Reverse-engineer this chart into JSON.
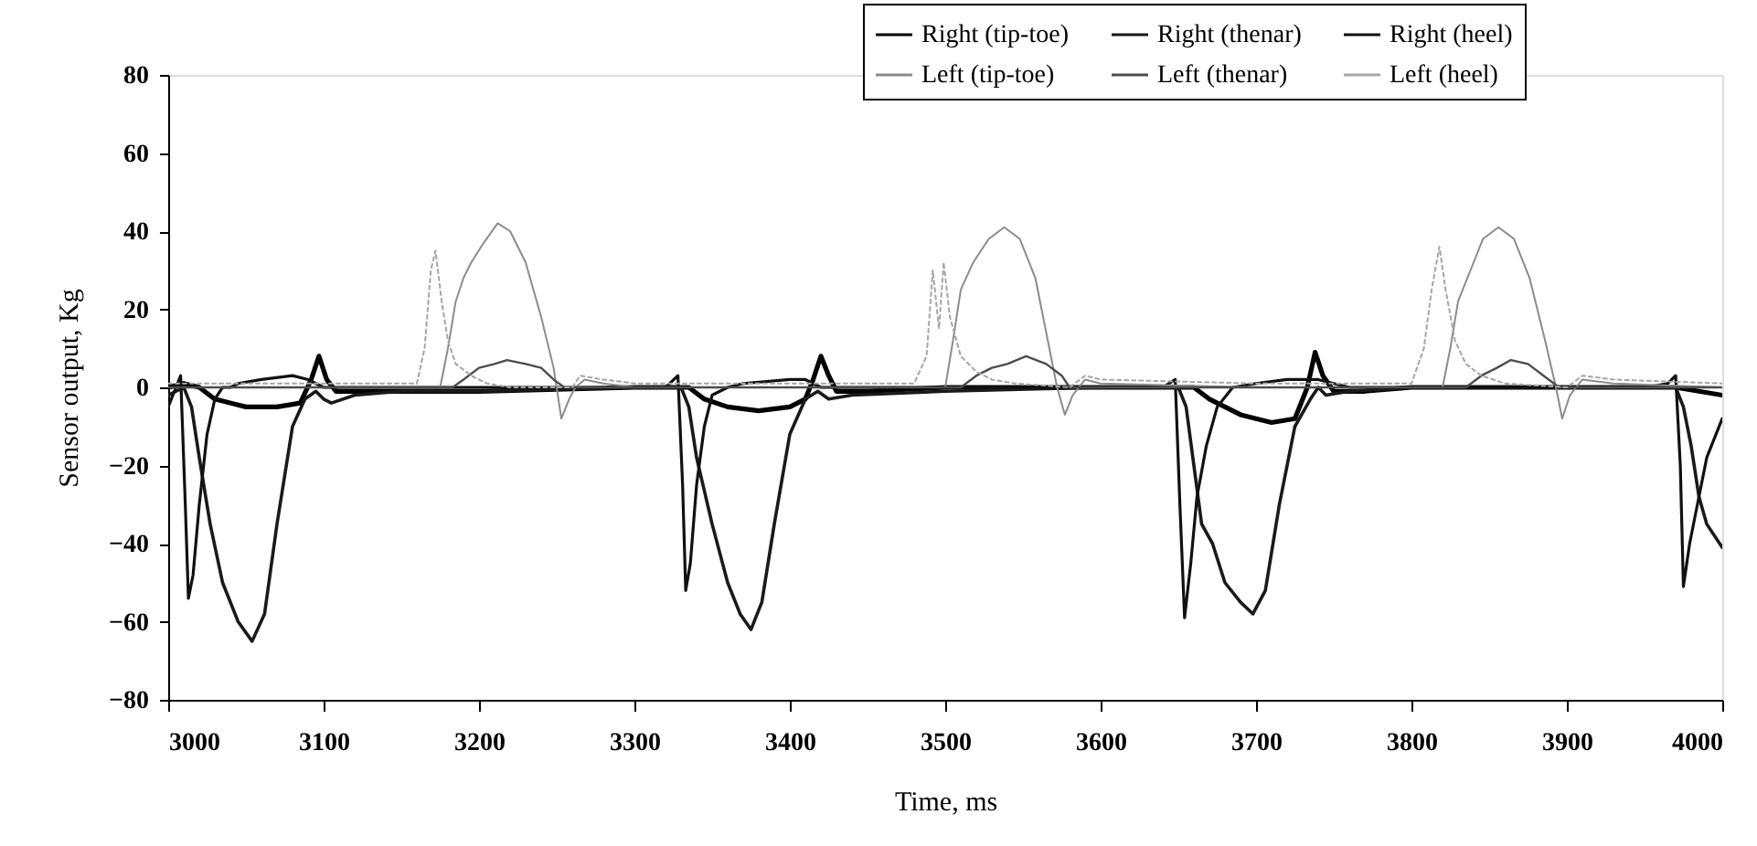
{
  "chart_data": {
    "type": "line",
    "xlabel": "Time, ms",
    "ylabel": "Sensor output, Kg",
    "xlim": [
      3000,
      4000
    ],
    "xticks": [
      3000,
      3100,
      3200,
      3300,
      3400,
      3500,
      3600,
      3700,
      3800,
      3900,
      4000
    ],
    "ylim": [
      -80,
      80
    ],
    "yticks": [
      -80,
      -60,
      -40,
      -20,
      0,
      20,
      40,
      60,
      80
    ],
    "grid": false,
    "legend": "top right",
    "marker": "none",
    "series": [
      {
        "name": "Right (tip-toe)",
        "color": "#000000",
        "line_style": "solid",
        "x": [
          3000,
          3010,
          3020,
          3030,
          3050,
          3070,
          3085,
          3092,
          3097,
          3102,
          3108,
          3120,
          3200,
          3300,
          3335,
          3345,
          3360,
          3380,
          3400,
          3410,
          3415,
          3420,
          3425,
          3430,
          3450,
          3500,
          3600,
          3660,
          3670,
          3690,
          3710,
          3725,
          3733,
          3738,
          3743,
          3750,
          3770,
          3800,
          3900,
          3970,
          3985,
          4000
        ],
        "values": [
          0,
          1,
          0,
          -3,
          -5,
          -5,
          -4,
          2,
          8,
          2,
          -1,
          -1,
          -1,
          0,
          0,
          -3,
          -5,
          -6,
          -5,
          -3,
          2,
          8,
          3,
          -1,
          -1,
          0,
          0,
          0,
          -3,
          -7,
          -9,
          -8,
          0,
          9,
          3,
          -1,
          -1,
          0,
          0,
          0,
          -1,
          -2
        ]
      },
      {
        "name": "Right (thenar)",
        "color": "#1a1a1a",
        "line_style": "solid",
        "x": [
          3000,
          3010,
          3015,
          3020,
          3027,
          3035,
          3045,
          3054,
          3062,
          3070,
          3080,
          3088,
          3095,
          3100,
          3105,
          3120,
          3150,
          3200,
          3300,
          3330,
          3335,
          3340,
          3350,
          3360,
          3368,
          3375,
          3382,
          3390,
          3400,
          3410,
          3418,
          3425,
          3440,
          3500,
          3600,
          3650,
          3655,
          3660,
          3665,
          3672,
          3680,
          3690,
          3698,
          3706,
          3715,
          3725,
          3735,
          3740,
          3745,
          3760,
          3800,
          3900,
          3970,
          3975,
          3980,
          3985,
          3990,
          4000
        ],
        "values": [
          -2,
          0,
          -5,
          -18,
          -35,
          -50,
          -60,
          -65,
          -58,
          -35,
          -10,
          -3,
          -1,
          -3,
          -4,
          -2,
          -1,
          -1,
          0,
          0,
          -5,
          -18,
          -35,
          -50,
          -58,
          -62,
          -55,
          -35,
          -12,
          -3,
          -1,
          -3,
          -2,
          -1,
          0,
          0,
          -5,
          -20,
          -35,
          -40,
          -50,
          -55,
          -58,
          -52,
          -30,
          -10,
          -3,
          0,
          -2,
          -1,
          0,
          0,
          0,
          -5,
          -15,
          -28,
          -35,
          -41
        ]
      },
      {
        "name": "Right (heel)",
        "color": "#111111",
        "line_style": "solid",
        "x": [
          3000,
          3005,
          3008,
          3011,
          3013,
          3016,
          3020,
          3025,
          3030,
          3035,
          3040,
          3045,
          3060,
          3080,
          3090,
          3100,
          3150,
          3200,
          3250,
          3300,
          3320,
          3328,
          3331,
          3333,
          3336,
          3340,
          3345,
          3350,
          3360,
          3370,
          3400,
          3410,
          3420,
          3450,
          3500,
          3550,
          3600,
          3640,
          3648,
          3651,
          3654,
          3658,
          3662,
          3668,
          3675,
          3685,
          3700,
          3720,
          3740,
          3760,
          3800,
          3850,
          3900,
          3950,
          3965,
          3970,
          3973,
          3975,
          3979,
          3985,
          3990,
          4000
        ],
        "values": [
          -5,
          0,
          3,
          -30,
          -54,
          -48,
          -30,
          -12,
          -3,
          0,
          0,
          1,
          2,
          3,
          2,
          0,
          0,
          0,
          0,
          0,
          0,
          3,
          -25,
          -52,
          -45,
          -25,
          -10,
          -2,
          0,
          1,
          2,
          2,
          0,
          0,
          0,
          0,
          0,
          0,
          2,
          -30,
          -59,
          -45,
          -28,
          -15,
          -5,
          0,
          1,
          2,
          2,
          0,
          0,
          0,
          0,
          0,
          1,
          3,
          -20,
          -51,
          -40,
          -28,
          -18,
          -8
        ]
      },
      {
        "name": "Left (tip-toe)",
        "color": "#8c8c8c",
        "line_style": "solid",
        "x": [
          3000,
          3100,
          3175,
          3180,
          3185,
          3190,
          3195,
          3203,
          3212,
          3220,
          3230,
          3240,
          3248,
          3253,
          3258,
          3262,
          3268,
          3280,
          3300,
          3400,
          3500,
          3505,
          3510,
          3518,
          3528,
          3538,
          3548,
          3558,
          3566,
          3572,
          3577,
          3582,
          3590,
          3600,
          3700,
          3820,
          3825,
          3830,
          3838,
          3846,
          3856,
          3866,
          3876,
          3886,
          3893,
          3897,
          3902,
          3910,
          3930,
          4000
        ],
        "values": [
          0,
          0,
          0,
          10,
          22,
          28,
          32,
          37,
          42,
          40,
          32,
          18,
          5,
          -8,
          -3,
          0,
          2,
          1,
          0,
          0,
          0,
          12,
          25,
          32,
          38,
          41,
          38,
          28,
          12,
          0,
          -7,
          -2,
          2,
          1,
          0,
          0,
          10,
          22,
          30,
          38,
          41,
          38,
          28,
          12,
          0,
          -8,
          -2,
          2,
          1,
          0
        ]
      },
      {
        "name": "Left (thenar)",
        "color": "#4d4d4d",
        "line_style": "solid",
        "x": [
          3000,
          3100,
          3183,
          3190,
          3200,
          3210,
          3218,
          3230,
          3240,
          3248,
          3255,
          3300,
          3400,
          3500,
          3510,
          3520,
          3530,
          3540,
          3552,
          3565,
          3575,
          3580,
          3600,
          3700,
          3830,
          3835,
          3845,
          3855,
          3864,
          3875,
          3885,
          3895,
          3900,
          4000
        ],
        "values": [
          0,
          0,
          0,
          2,
          5,
          6,
          7,
          6,
          5,
          2,
          0,
          0,
          0,
          0,
          0,
          3,
          5,
          6,
          8,
          6,
          3,
          0,
          0,
          0,
          0,
          0,
          3,
          5,
          7,
          6,
          3,
          0,
          0,
          0
        ]
      },
      {
        "name": "Left (heel)",
        "color": "#a6a6a6",
        "line_style": "dotted",
        "x": [
          3000,
          3100,
          3160,
          3165,
          3169,
          3172,
          3176,
          3180,
          3185,
          3195,
          3205,
          3220,
          3260,
          3265,
          3280,
          3300,
          3400,
          3480,
          3488,
          3492,
          3496,
          3499,
          3503,
          3510,
          3520,
          3530,
          3545,
          3580,
          3590,
          3600,
          3700,
          3800,
          3808,
          3813,
          3818,
          3822,
          3828,
          3835,
          3845,
          3860,
          3900,
          3910,
          3930,
          4000
        ],
        "values": [
          1,
          1,
          1,
          10,
          30,
          35,
          22,
          12,
          6,
          3,
          1,
          0,
          0,
          3,
          2,
          1,
          1,
          1,
          8,
          30,
          15,
          32,
          18,
          8,
          4,
          2,
          1,
          0,
          3,
          2,
          1,
          1,
          10,
          25,
          36,
          25,
          12,
          6,
          3,
          1,
          0,
          3,
          2,
          1
        ]
      }
    ]
  }
}
